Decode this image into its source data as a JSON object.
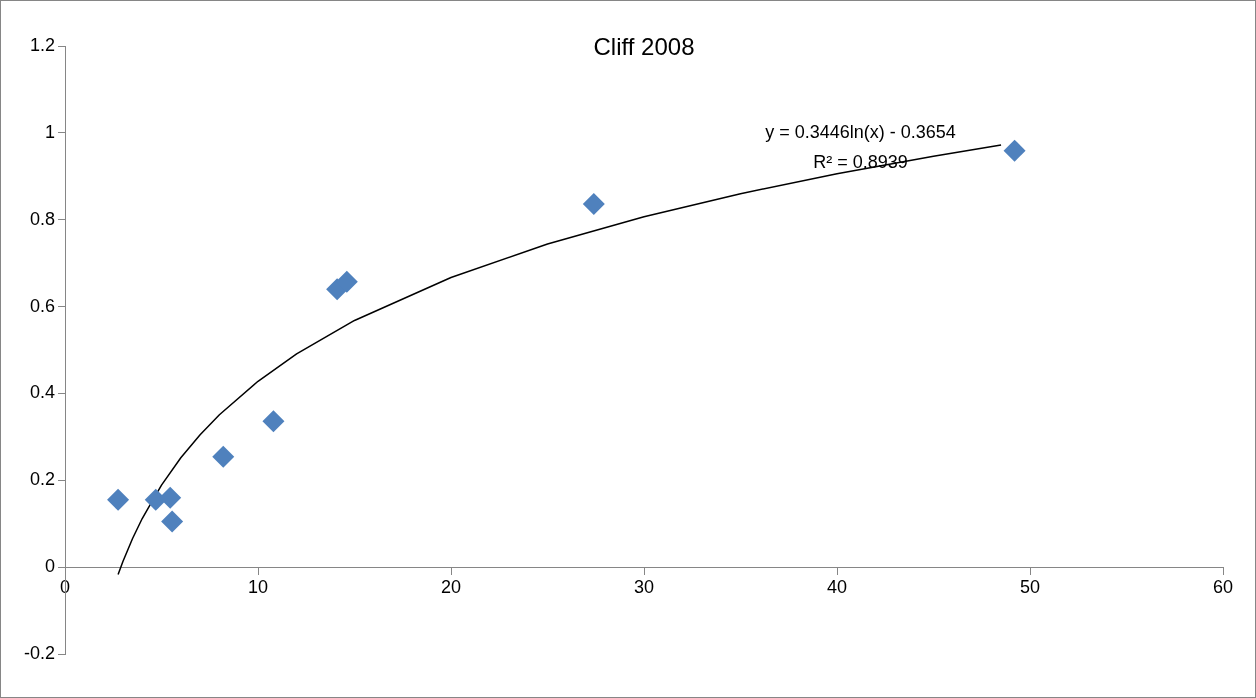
{
  "chart_data": {
    "type": "scatter",
    "title": "Cliff 2008",
    "xlim": [
      0,
      60
    ],
    "xticks": [
      0,
      10,
      20,
      30,
      40,
      50,
      60
    ],
    "ylim": [
      -0.2,
      1.2
    ],
    "yticks": [
      -0.2,
      0,
      0.2,
      0.4,
      0.6,
      0.8,
      1,
      1.2
    ],
    "grid": false,
    "legend": false,
    "marker": "diamond",
    "series": [
      {
        "color": "#4f81bd",
        "x": [
          2.75,
          4.7,
          5.45,
          5.55,
          8.2,
          10.8,
          14.1,
          14.6,
          27.4,
          49.2
        ],
        "values": [
          0.155,
          0.155,
          0.16,
          0.105,
          0.254,
          0.336,
          0.64,
          0.657,
          0.836,
          0.959
        ]
      },
      {
        "type": "line",
        "color": "#000000",
        "marker": "none",
        "x": [
          2.75,
          3,
          3.5,
          4,
          5,
          6,
          7,
          8,
          10,
          12,
          15,
          20,
          25,
          30,
          35,
          40,
          45,
          48.5
        ],
        "values": [
          -0.017,
          0.013,
          0.066,
          0.112,
          0.189,
          0.252,
          0.305,
          0.351,
          0.428,
          0.491,
          0.568,
          0.667,
          0.744,
          0.807,
          0.86,
          0.906,
          0.946,
          0.972
        ]
      }
    ],
    "annotations": [
      "y = 0.3446ln(x) - 0.3654",
      "R² = 0.8939"
    ]
  }
}
